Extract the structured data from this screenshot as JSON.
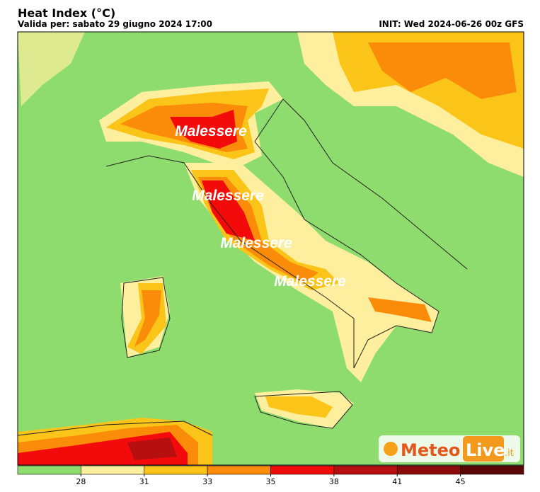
{
  "header": {
    "title": "Heat Index (°C)",
    "valid": "Valida per: sabato 29 giugno 2024 17:00",
    "init": "INIT: Wed 2024-06-26 00z GFS"
  },
  "annotations": [
    "Malessere",
    "Malessere",
    "Malessere",
    "Malessere"
  ],
  "logo": {
    "part1": "Meteo",
    "part2": "Live",
    "part3": ".it"
  },
  "legend": {
    "colors": [
      "#8fdc6e",
      "#fdef9e",
      "#fbc418",
      "#fb8c0a",
      "#f30a0a",
      "#b70f0f",
      "#8b0b0b",
      "#5c0606"
    ],
    "ticks": [
      28,
      31,
      33,
      35,
      38,
      41,
      45
    ]
  }
}
